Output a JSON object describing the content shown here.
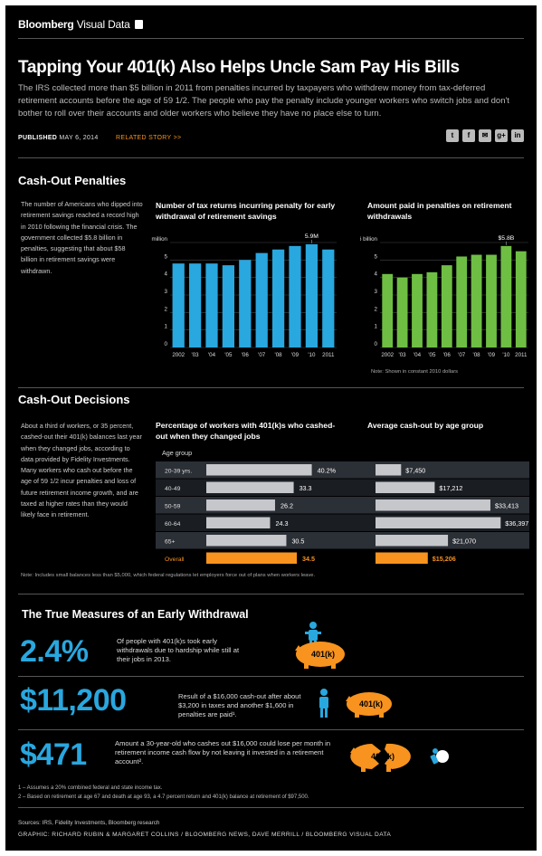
{
  "brand": {
    "name": "Bloomberg",
    "suffix": "Visual Data"
  },
  "headline": "Tapping Your 401(k) Also Helps Uncle Sam Pay His Bills",
  "dek": "The IRS collected more than $5 billion in 2011 from penalties incurred by taxpayers who withdrew money from tax-deferred retirement accounts before the age of 59 1/2. The people who pay the penalty include younger workers who switch jobs and don't bother to roll over their accounts and older workers who believe they have no place else to turn.",
  "published_label": "PUBLISHED",
  "published_date": "MAY 6, 2014",
  "related": "RELATED STORY >>",
  "share_icons": [
    "twitter-icon",
    "facebook-icon",
    "email-icon",
    "google-plus-icon",
    "linkedin-icon"
  ],
  "share_glyphs": [
    "t",
    "f",
    "✉",
    "g+",
    "in"
  ],
  "penalties": {
    "heading": "Cash-Out Penalties",
    "intro": "The number of Americans who dipped into retirement savings reached a record high in 2010 following the financial crisis. The government collected $5.8 billion in penalties, suggesting that about $58 billion in retirement savings were withdrawn.",
    "returns_title": "Number of tax returns incurring penalty for early withdrawal of retirement savings",
    "paid_title": "Amount paid in penalties on retirement withdrawals",
    "paid_note": "Note: Shown in constant 2010 dollars"
  },
  "decisions": {
    "heading": "Cash-Out Decisions",
    "intro": "About a third of workers, or 35 percent, cashed-out their 401(k) balances last year when they changed jobs, according to data provided by Fidelity Investments. Many workers who cash out before the age of 59 1/2 incur penalties and loss of future retirement income growth, and are taxed at higher rates than they would likely face in retirement.",
    "pct_title": "Percentage of workers with 401(k)s who cashed-out when they changed jobs",
    "avg_title": "Average cash-out by age group",
    "age_group_label": "Age group",
    "note": "Note: Includes small balances less than $5,000, which federal regulations let employers force out of plans when workers leave."
  },
  "measures": {
    "heading": "The True Measures of an Early Withdrawal",
    "items": [
      {
        "figure": "2.4%",
        "text": "Of people with 401(k)s took early withdrawals due to hardship while still at their jobs in 2013."
      },
      {
        "figure": "$11,200",
        "text": "Result of a $16,000 cash-out after about $3,200 in taxes and another $1,600 in penalties are paid¹."
      },
      {
        "figure": "$471",
        "text": "Amount a 30-year-old who cashes out $16,000 could lose per month in retirement income cash flow by not leaving it invested in a retirement account²."
      }
    ],
    "piggy_label": "401(k)",
    "colors": {
      "figure": "#29a7df",
      "piggy": "#f7931e"
    }
  },
  "footnotes": [
    "1 – Assumes a 20% combined federal and state income tax.",
    "2 – Based on retirement at age 67 and death at age 93, a 4.7 percent return and 401(k) balance at retirement of $97,500."
  ],
  "sources": "Sources: IRS, Fidelity Investments, Bloomberg research",
  "credit": "GRAPHIC: RICHARD RUBIN & MARGARET COLLINS / BLOOMBERG NEWS, DAVE MERRILL / BLOOMBERG VISUAL DATA",
  "chart_data": [
    {
      "type": "bar",
      "title": "Number of tax returns incurring penalty for early withdrawal of retirement savings",
      "categories": [
        "2002",
        "'03",
        "'04",
        "'05",
        "'06",
        "'07",
        "'08",
        "'09",
        "'10",
        "2011"
      ],
      "values": [
        4.8,
        4.8,
        4.8,
        4.7,
        5.0,
        5.4,
        5.6,
        5.8,
        5.9,
        5.6
      ],
      "annotation": {
        "category": "'10",
        "label": "5.9M"
      },
      "ylim": [
        0,
        6
      ],
      "yticks": [
        "0",
        "1",
        "2",
        "3",
        "4",
        "5",
        "6 million"
      ],
      "color": "#29a7df",
      "grid": true
    },
    {
      "type": "bar",
      "title": "Amount paid in penalties on retirement withdrawals",
      "categories": [
        "2002",
        "'03",
        "'04",
        "'05",
        "'06",
        "'07",
        "'08",
        "'09",
        "'10",
        "2011"
      ],
      "values": [
        4.2,
        4.0,
        4.2,
        4.3,
        4.7,
        5.2,
        5.3,
        5.3,
        5.8,
        5.5
      ],
      "annotation": {
        "category": "'10",
        "label": "$5.8B"
      },
      "ylim": [
        0,
        6
      ],
      "yticks": [
        "0",
        "1",
        "2",
        "3",
        "4",
        "5",
        "$6 billion"
      ],
      "color": "#6ebe44",
      "grid": true
    },
    {
      "type": "bar",
      "orientation": "horizontal",
      "title": "Percentage of workers with 401(k)s who cashed-out when they changed jobs",
      "categories": [
        "20-39 yrs.",
        "40-49",
        "50-59",
        "60-64",
        "65+",
        "Overall"
      ],
      "values": [
        40.2,
        33.3,
        26.2,
        24.3,
        30.5,
        34.5
      ],
      "value_labels": [
        "40.2%",
        "33.3",
        "26.2",
        "24.3",
        "30.5",
        "34.5"
      ],
      "xlim": [
        0,
        50
      ],
      "colors": {
        "bar": "#c5c7cb",
        "overall": "#f7931e"
      }
    },
    {
      "type": "bar",
      "orientation": "horizontal",
      "title": "Average cash-out by age group",
      "categories": [
        "20-39 yrs.",
        "40-49",
        "50-59",
        "60-64",
        "65+",
        "Overall"
      ],
      "values": [
        7450,
        17212,
        33413,
        36397,
        21070,
        15206
      ],
      "value_labels": [
        "$7,450",
        "$17,212",
        "$33,413",
        "$36,397",
        "$21,070",
        "$15,206"
      ],
      "xlim": [
        0,
        40000
      ],
      "colors": {
        "bar": "#c5c7cb",
        "overall": "#f7931e"
      }
    }
  ]
}
